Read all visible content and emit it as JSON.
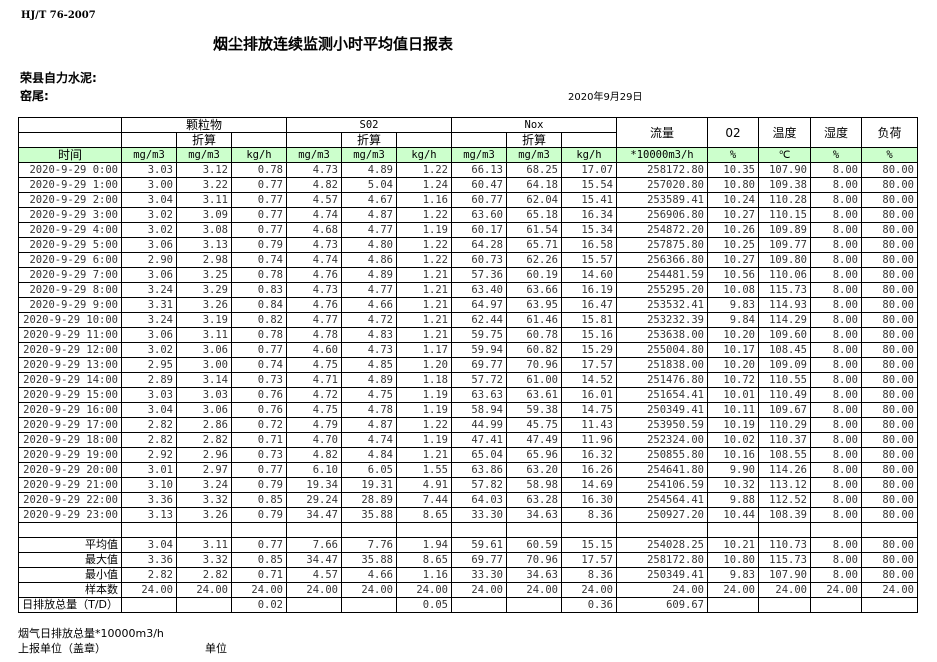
{
  "header": {
    "standard": "HJ/T  76-2007",
    "title": "烟尘排放连续监测小时平均值日报表",
    "company": "荣县自力水泥:",
    "kiln": "窑尾:",
    "date": "2020年9月29日"
  },
  "table": {
    "groups": {
      "pm": "颗粒物",
      "so2": "S02",
      "nox": "Nox",
      "flow": "流量",
      "o2": "02",
      "temp": "温度",
      "humidity": "湿度",
      "load": "负荷"
    },
    "converted": "折算",
    "time_label": "时间",
    "units": [
      "mg/m3",
      "mg/m3",
      "kg/h",
      "mg/m3",
      "mg/m3",
      "kg/h",
      "mg/m3",
      "mg/m3",
      "kg/h",
      "*10000m3/h",
      "%",
      "℃",
      "%",
      "%"
    ],
    "rows": [
      [
        "2020-9-29 0:00",
        "3.03",
        "3.12",
        "0.78",
        "4.73",
        "4.89",
        "1.22",
        "66.13",
        "68.25",
        "17.07",
        "258172.80",
        "10.35",
        "107.90",
        "8.00",
        "80.00"
      ],
      [
        "2020-9-29 1:00",
        "3.00",
        "3.22",
        "0.77",
        "4.82",
        "5.04",
        "1.24",
        "60.47",
        "64.18",
        "15.54",
        "257020.80",
        "10.80",
        "109.38",
        "8.00",
        "80.00"
      ],
      [
        "2020-9-29 2:00",
        "3.04",
        "3.11",
        "0.77",
        "4.57",
        "4.67",
        "1.16",
        "60.77",
        "62.04",
        "15.41",
        "253589.41",
        "10.24",
        "110.28",
        "8.00",
        "80.00"
      ],
      [
        "2020-9-29 3:00",
        "3.02",
        "3.09",
        "0.77",
        "4.74",
        "4.87",
        "1.22",
        "63.60",
        "65.18",
        "16.34",
        "256906.80",
        "10.27",
        "110.15",
        "8.00",
        "80.00"
      ],
      [
        "2020-9-29 4:00",
        "3.02",
        "3.08",
        "0.77",
        "4.68",
        "4.77",
        "1.19",
        "60.17",
        "61.54",
        "15.34",
        "254872.20",
        "10.26",
        "109.89",
        "8.00",
        "80.00"
      ],
      [
        "2020-9-29 5:00",
        "3.06",
        "3.13",
        "0.79",
        "4.73",
        "4.80",
        "1.22",
        "64.28",
        "65.71",
        "16.58",
        "257875.80",
        "10.25",
        "109.77",
        "8.00",
        "80.00"
      ],
      [
        "2020-9-29 6:00",
        "2.90",
        "2.98",
        "0.74",
        "4.74",
        "4.86",
        "1.22",
        "60.73",
        "62.26",
        "15.57",
        "256366.80",
        "10.27",
        "109.80",
        "8.00",
        "80.00"
      ],
      [
        "2020-9-29 7:00",
        "3.06",
        "3.25",
        "0.78",
        "4.76",
        "4.89",
        "1.21",
        "57.36",
        "60.19",
        "14.60",
        "254481.59",
        "10.56",
        "110.06",
        "8.00",
        "80.00"
      ],
      [
        "2020-9-29 8:00",
        "3.24",
        "3.29",
        "0.83",
        "4.73",
        "4.77",
        "1.21",
        "63.40",
        "63.66",
        "16.19",
        "255295.20",
        "10.08",
        "115.73",
        "8.00",
        "80.00"
      ],
      [
        "2020-9-29 9:00",
        "3.31",
        "3.26",
        "0.84",
        "4.76",
        "4.66",
        "1.21",
        "64.97",
        "63.95",
        "16.47",
        "253532.41",
        "9.83",
        "114.93",
        "8.00",
        "80.00"
      ],
      [
        "2020-9-29 10:00",
        "3.24",
        "3.19",
        "0.82",
        "4.77",
        "4.72",
        "1.21",
        "62.44",
        "61.46",
        "15.81",
        "253232.39",
        "9.84",
        "114.29",
        "8.00",
        "80.00"
      ],
      [
        "2020-9-29 11:00",
        "3.06",
        "3.11",
        "0.78",
        "4.78",
        "4.83",
        "1.21",
        "59.75",
        "60.78",
        "15.16",
        "253638.00",
        "10.20",
        "109.60",
        "8.00",
        "80.00"
      ],
      [
        "2020-9-29 12:00",
        "3.02",
        "3.06",
        "0.77",
        "4.60",
        "4.73",
        "1.17",
        "59.94",
        "60.82",
        "15.29",
        "255004.80",
        "10.17",
        "108.45",
        "8.00",
        "80.00"
      ],
      [
        "2020-9-29 13:00",
        "2.95",
        "3.00",
        "0.74",
        "4.75",
        "4.85",
        "1.20",
        "69.77",
        "70.96",
        "17.57",
        "251838.00",
        "10.20",
        "109.09",
        "8.00",
        "80.00"
      ],
      [
        "2020-9-29 14:00",
        "2.89",
        "3.14",
        "0.73",
        "4.71",
        "4.89",
        "1.18",
        "57.72",
        "61.00",
        "14.52",
        "251476.80",
        "10.72",
        "110.55",
        "8.00",
        "80.00"
      ],
      [
        "2020-9-29 15:00",
        "3.03",
        "3.03",
        "0.76",
        "4.72",
        "4.75",
        "1.19",
        "63.63",
        "63.61",
        "16.01",
        "251654.41",
        "10.01",
        "110.49",
        "8.00",
        "80.00"
      ],
      [
        "2020-9-29 16:00",
        "3.04",
        "3.06",
        "0.76",
        "4.75",
        "4.78",
        "1.19",
        "58.94",
        "59.38",
        "14.75",
        "250349.41",
        "10.11",
        "109.67",
        "8.00",
        "80.00"
      ],
      [
        "2020-9-29 17:00",
        "2.82",
        "2.86",
        "0.72",
        "4.79",
        "4.87",
        "1.22",
        "44.99",
        "45.75",
        "11.43",
        "253950.59",
        "10.19",
        "110.29",
        "8.00",
        "80.00"
      ],
      [
        "2020-9-29 18:00",
        "2.82",
        "2.82",
        "0.71",
        "4.70",
        "4.74",
        "1.19",
        "47.41",
        "47.49",
        "11.96",
        "252324.00",
        "10.02",
        "110.37",
        "8.00",
        "80.00"
      ],
      [
        "2020-9-29 19:00",
        "2.92",
        "2.96",
        "0.73",
        "4.82",
        "4.84",
        "1.21",
        "65.04",
        "65.96",
        "16.32",
        "250855.80",
        "10.16",
        "108.55",
        "8.00",
        "80.00"
      ],
      [
        "2020-9-29 20:00",
        "3.01",
        "2.97",
        "0.77",
        "6.10",
        "6.05",
        "1.55",
        "63.86",
        "63.20",
        "16.26",
        "254641.80",
        "9.90",
        "114.26",
        "8.00",
        "80.00"
      ],
      [
        "2020-9-29 21:00",
        "3.10",
        "3.24",
        "0.79",
        "19.34",
        "19.31",
        "4.91",
        "57.82",
        "58.98",
        "14.69",
        "254106.59",
        "10.32",
        "113.12",
        "8.00",
        "80.00"
      ],
      [
        "2020-9-29 22:00",
        "3.36",
        "3.32",
        "0.85",
        "29.24",
        "28.89",
        "7.44",
        "64.03",
        "63.28",
        "16.30",
        "254564.41",
        "9.88",
        "112.52",
        "8.00",
        "80.00"
      ],
      [
        "2020-9-29 23:00",
        "3.13",
        "3.26",
        "0.79",
        "34.47",
        "35.88",
        "8.65",
        "33.30",
        "34.63",
        "8.36",
        "250927.20",
        "10.44",
        "108.39",
        "8.00",
        "80.00"
      ]
    ],
    "summary": [
      [
        "平均值",
        "3.04",
        "3.11",
        "0.77",
        "7.66",
        "7.76",
        "1.94",
        "59.61",
        "60.59",
        "15.15",
        "254028.25",
        "10.21",
        "110.73",
        "8.00",
        "80.00"
      ],
      [
        "最大值",
        "3.36",
        "3.32",
        "0.85",
        "34.47",
        "35.88",
        "8.65",
        "69.77",
        "70.96",
        "17.57",
        "258172.80",
        "10.80",
        "115.73",
        "8.00",
        "80.00"
      ],
      [
        "最小值",
        "2.82",
        "2.82",
        "0.71",
        "4.57",
        "4.66",
        "1.16",
        "33.30",
        "34.63",
        "8.36",
        "250349.41",
        "9.83",
        "107.90",
        "8.00",
        "80.00"
      ],
      [
        "样本数",
        "24.00",
        "24.00",
        "24.00",
        "24.00",
        "24.00",
        "24.00",
        "24.00",
        "24.00",
        "24.00",
        "24.00",
        "24.00",
        "24.00",
        "24.00",
        "24.00"
      ],
      [
        "日排放总量（T/D）",
        "",
        "",
        "0.02",
        "",
        "",
        "0.05",
        "",
        "",
        "0.36",
        "609.67",
        "",
        "",
        "",
        ""
      ]
    ]
  },
  "footer": {
    "flue_gas_total": "烟气日排放总量*10000m3/h",
    "reporting_unit": "上报单位（盖章）",
    "unit": "单位"
  }
}
